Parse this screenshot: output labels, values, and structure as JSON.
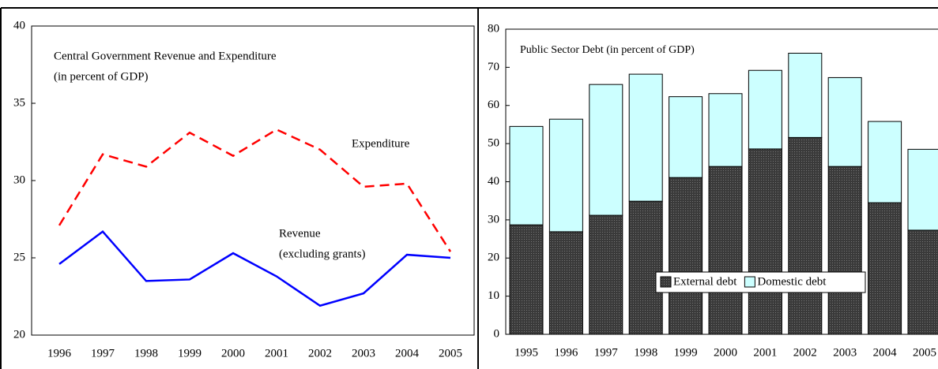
{
  "chart_data": [
    {
      "type": "line",
      "title": [
        "Central Government Revenue and Expenditure",
        "(in percent of GDP)"
      ],
      "annotations": [
        "Expenditure",
        "Revenue",
        "(excluding grants)"
      ],
      "categories": [
        "1996",
        "1997",
        "1998",
        "1999",
        "2000",
        "2001",
        "2002",
        "2003",
        "2004",
        "2005"
      ],
      "series": [
        {
          "name": "Expenditure",
          "color": "#ff0000",
          "style": "dashed",
          "values": [
            27.1,
            31.7,
            30.9,
            33.1,
            31.6,
            33.3,
            32.0,
            29.6,
            29.8,
            25.4
          ]
        },
        {
          "name": "Revenue",
          "color": "#0000ff",
          "style": "solid",
          "values": [
            24.6,
            26.7,
            23.5,
            23.6,
            25.3,
            23.8,
            21.9,
            22.7,
            25.2,
            25.0
          ]
        }
      ],
      "ylim": [
        20,
        40
      ],
      "yticks": [
        20,
        25,
        30,
        35,
        40
      ],
      "grid": false,
      "legend": false
    },
    {
      "type": "bar",
      "stacked": true,
      "title": [
        "Public Sector Debt (in percent of GDP)"
      ],
      "categories": [
        "1995",
        "1996",
        "1997",
        "1998",
        "1999",
        "2000",
        "2001",
        "2002",
        "2003",
        "2004",
        "2005"
      ],
      "series": [
        {
          "name": "External debt",
          "color": "#333333",
          "values": [
            28.7,
            26.9,
            31.2,
            34.9,
            41.1,
            44.0,
            48.6,
            51.6,
            44.0,
            34.5,
            27.3
          ]
        },
        {
          "name": "Domestic debt",
          "color": "#ccffff",
          "values": [
            25.8,
            29.5,
            34.3,
            33.3,
            21.2,
            19.1,
            20.6,
            22.1,
            23.3,
            21.3,
            21.2
          ]
        }
      ],
      "ylim": [
        0,
        80
      ],
      "yticks": [
        0,
        10,
        20,
        30,
        40,
        50,
        60,
        70,
        80
      ],
      "grid": false,
      "legend": "bottom"
    }
  ]
}
